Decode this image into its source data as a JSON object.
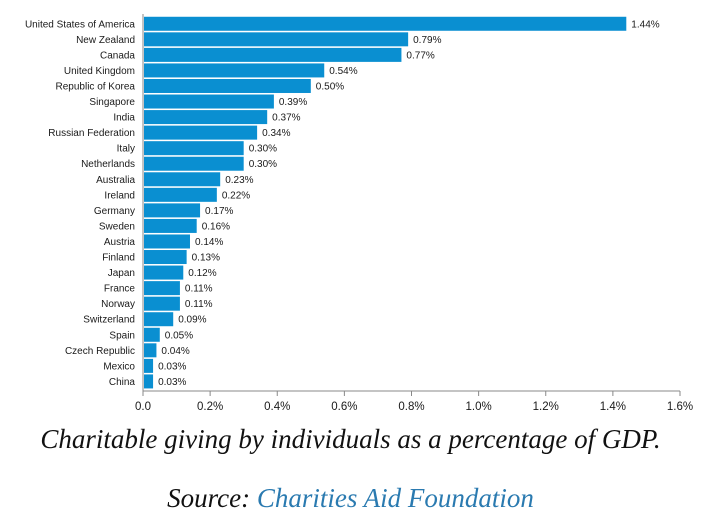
{
  "chart_data": {
    "type": "bar",
    "orientation": "horizontal",
    "categories": [
      "United States of America",
      "New Zealand",
      "Canada",
      "United Kingdom",
      "Republic of Korea",
      "Singapore",
      "India",
      "Russian Federation",
      "Italy",
      "Netherlands",
      "Australia",
      "Ireland",
      "Germany",
      "Sweden",
      "Austria",
      "Finland",
      "Japan",
      "France",
      "Norway",
      "Switzerland",
      "Spain",
      "Czech Republic",
      "Mexico",
      "China"
    ],
    "values": [
      1.44,
      0.79,
      0.77,
      0.54,
      0.5,
      0.39,
      0.37,
      0.34,
      0.3,
      0.3,
      0.23,
      0.22,
      0.17,
      0.16,
      0.14,
      0.13,
      0.12,
      0.11,
      0.11,
      0.09,
      0.05,
      0.04,
      0.03,
      0.03
    ],
    "value_labels": [
      "1.44%",
      "0.79%",
      "0.77%",
      "0.54%",
      "0.50%",
      "0.39%",
      "0.37%",
      "0.34%",
      "0.30%",
      "0.30%",
      "0.23%",
      "0.22%",
      "0.17%",
      "0.16%",
      "0.14%",
      "0.13%",
      "0.12%",
      "0.11%",
      "0.11%",
      "0.09%",
      "0.05%",
      "0.04%",
      "0.03%",
      "0.03%"
    ],
    "xlim": [
      0,
      1.6
    ],
    "xticks": [
      0,
      0.2,
      0.4,
      0.6,
      0.8,
      1.0,
      1.2,
      1.4,
      1.6
    ],
    "xtick_labels": [
      "0.0",
      "0.2%",
      "0.4%",
      "0.6%",
      "0.8%",
      "1.0%",
      "1.2%",
      "1.4%",
      "1.6%"
    ],
    "title": "",
    "xlabel": "",
    "ylabel": "",
    "grid": false,
    "legend": "none",
    "bar_color": "#0a8fd1",
    "axis_color": "#888888"
  },
  "caption": "Charitable giving by individuals as a percentage of GDP.",
  "source": {
    "prefix": "Source:",
    "name": "Charities Aid Foundation",
    "link_color": "#2a7ab0"
  }
}
